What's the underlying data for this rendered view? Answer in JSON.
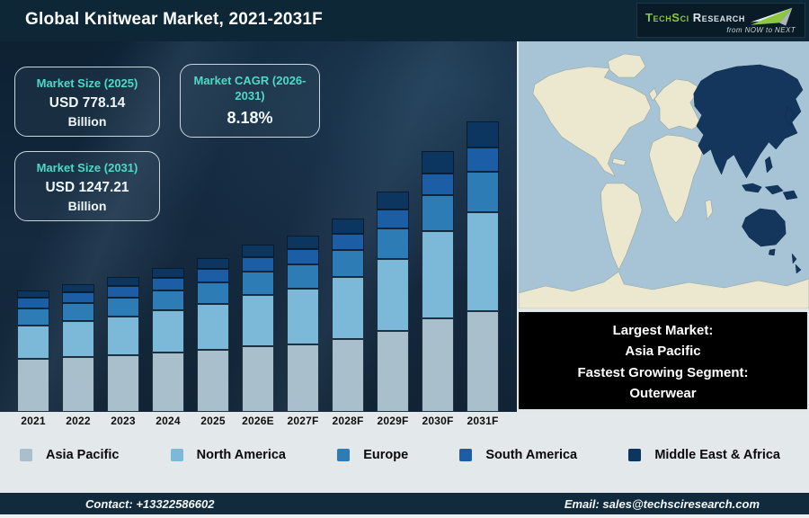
{
  "header": {
    "title": "Global Knitwear Market, 2021-2031F",
    "logo": {
      "brand_1": "TechSci",
      "brand_2": "Research",
      "tagline": "from NOW to NEXT"
    }
  },
  "stat_boxes": [
    {
      "label": "Market Size (2025)",
      "value": "USD 778.14",
      "unit": "Billion"
    },
    {
      "label": "Market CAGR (2026-2031)",
      "value": "8.18%"
    },
    {
      "label": "Market Size (2031)",
      "value": "USD 1247.21",
      "unit": "Billion"
    }
  ],
  "highlight_box": {
    "line1": "Largest Market:",
    "line2": "Asia Pacific",
    "line3": "Fastest Growing Segment:",
    "line4": "Outerwear"
  },
  "map": {
    "highlighted_region": "Asia Pacific",
    "ocean_color": "#a6c4d6",
    "land_color": "#ece8cf",
    "highlight_color": "#14365c"
  },
  "chart_data": {
    "type": "bar",
    "stacked": true,
    "title": "Global Knitwear Market, 2021-2031F",
    "categories": [
      "2021",
      "2022",
      "2023",
      "2024",
      "2025",
      "2026E",
      "2027F",
      "2028F",
      "2029F",
      "2030F",
      "2031F"
    ],
    "unit": "relative bar height in px (chart shows no numeric axis)",
    "known_totals_usd_billion": {
      "2025": 778.14,
      "2031": 1247.21
    },
    "cagr_2026_2031_percent": 8.18,
    "legend_position": "bottom",
    "series": [
      {
        "name": "Asia Pacific",
        "color": "#a9bfcb",
        "values": [
          59,
          61,
          63,
          66,
          69,
          73,
          75,
          81,
          90,
          104,
          112
        ]
      },
      {
        "name": "North America",
        "color": "#7cb8d8",
        "values": [
          37,
          40,
          43,
          47,
          51,
          57,
          62,
          69,
          80,
          97,
          110
        ]
      },
      {
        "name": "Europe",
        "color": "#2d7cb5",
        "values": [
          19,
          20,
          21,
          22,
          24,
          26,
          27,
          30,
          34,
          40,
          45
        ]
      },
      {
        "name": "South America",
        "color": "#1b5ea6",
        "values": [
          12,
          12,
          13,
          14,
          15,
          16,
          17,
          18,
          21,
          24,
          27
        ]
      },
      {
        "name": "Middle East & Africa",
        "color": "#0c355f",
        "values": [
          8,
          9,
          10,
          11,
          12,
          14,
          15,
          17,
          20,
          25,
          29
        ]
      }
    ]
  },
  "footer": {
    "contact": "Contact: +13322586602",
    "email": "Email: sales@techsciresearch.com"
  }
}
